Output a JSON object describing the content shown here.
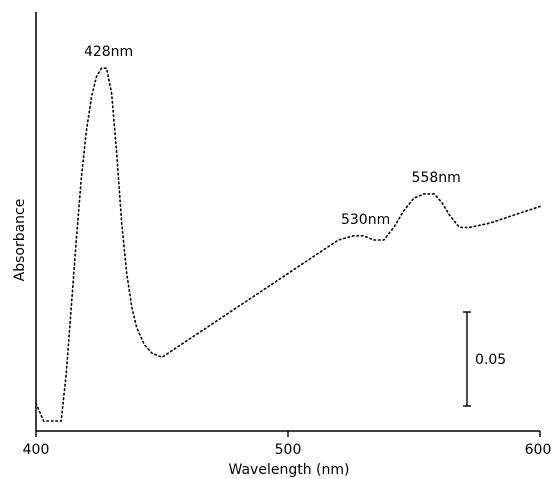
{
  "chart_data": {
    "type": "line",
    "xlabel": "Wavelength (nm)",
    "ylabel": "Absorbance",
    "xlim": [
      400,
      600
    ],
    "ylim": [
      0,
      1
    ],
    "xticks": [
      400,
      500,
      600
    ],
    "xtick_labels": [
      "400",
      "500",
      "600"
    ],
    "grid": false,
    "line_style": "dotted",
    "line_color": "#000000",
    "series": [
      {
        "x": [
          400,
          403,
          406,
          408,
          410,
          412,
          414,
          416,
          418,
          420,
          422,
          424,
          426,
          428,
          430,
          432,
          434,
          436,
          438,
          440,
          443,
          446,
          450,
          455,
          460,
          470,
          480,
          490,
          500,
          510,
          520,
          526,
          530,
          534,
          538,
          542,
          546,
          550,
          554,
          558,
          561,
          564,
          568,
          572,
          580,
          590,
          600
        ],
        "y": [
          0.19,
          0.1,
          0.07,
          0.07,
          0.13,
          0.26,
          0.42,
          0.58,
          0.73,
          0.84,
          0.92,
          0.97,
          0.99,
          0.99,
          0.93,
          0.79,
          0.62,
          0.5,
          0.42,
          0.37,
          0.33,
          0.31,
          0.3,
          0.32,
          0.34,
          0.38,
          0.42,
          0.46,
          0.5,
          0.54,
          0.58,
          0.59,
          0.59,
          0.58,
          0.58,
          0.61,
          0.65,
          0.68,
          0.69,
          0.69,
          0.67,
          0.64,
          0.61,
          0.61,
          0.62,
          0.64,
          0.66
        ]
      }
    ],
    "annotations": [
      {
        "text": "428nm",
        "x": 428,
        "y": 0.99
      },
      {
        "text": "530nm",
        "x": 530,
        "y": 0.59
      },
      {
        "text": "558nm",
        "x": 558,
        "y": 0.69
      }
    ],
    "scale_bar": {
      "label": "0.05",
      "value": 0.05
    }
  }
}
